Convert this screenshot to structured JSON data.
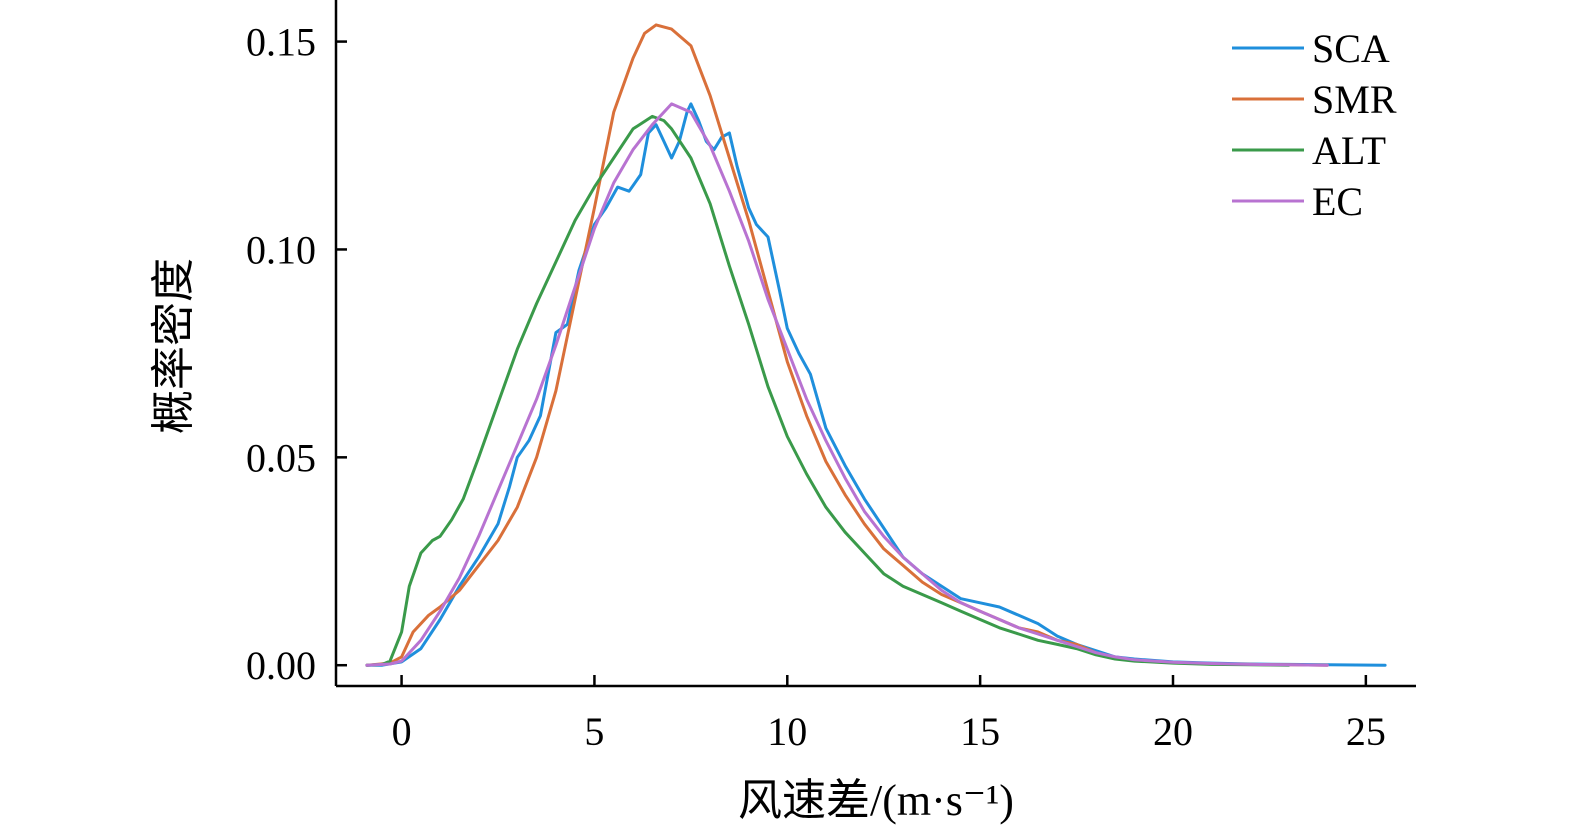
{
  "chart_data": {
    "type": "line",
    "xlabel": "风速差/(m·s⁻¹)",
    "ylabel": "概率密度",
    "xlim": [
      -1.7,
      26.3
    ],
    "ylim": [
      -0.005,
      0.16
    ],
    "xticks": [
      0,
      5,
      10,
      15,
      20,
      25
    ],
    "xtick_labels": [
      "0",
      "5",
      "10",
      "15",
      "20",
      "25"
    ],
    "yticks": [
      0.0,
      0.05,
      0.1,
      0.15
    ],
    "ytick_labels": [
      "0.00",
      "0.05",
      "0.10",
      "0.15"
    ],
    "grid": false,
    "legend_position": "top-right",
    "series": [
      {
        "name": "SCA",
        "color": "#1f8fdc",
        "points": [
          [
            -0.9,
            0.0
          ],
          [
            -0.5,
            0.0
          ],
          [
            0,
            0.0008
          ],
          [
            0.5,
            0.004
          ],
          [
            1,
            0.011
          ],
          [
            1.5,
            0.019
          ],
          [
            2,
            0.026
          ],
          [
            2.5,
            0.034
          ],
          [
            2.8,
            0.043
          ],
          [
            3,
            0.05
          ],
          [
            3.3,
            0.054
          ],
          [
            3.6,
            0.06
          ],
          [
            3.8,
            0.07
          ],
          [
            4,
            0.08
          ],
          [
            4.3,
            0.082
          ],
          [
            4.6,
            0.095
          ],
          [
            5,
            0.106
          ],
          [
            5.3,
            0.11
          ],
          [
            5.6,
            0.115
          ],
          [
            5.9,
            0.114
          ],
          [
            6.2,
            0.118
          ],
          [
            6.4,
            0.128
          ],
          [
            6.6,
            0.13
          ],
          [
            6.8,
            0.126
          ],
          [
            7,
            0.122
          ],
          [
            7.2,
            0.126
          ],
          [
            7.4,
            0.133
          ],
          [
            7.5,
            0.135
          ],
          [
            7.7,
            0.131
          ],
          [
            7.9,
            0.126
          ],
          [
            8.1,
            0.124
          ],
          [
            8.3,
            0.127
          ],
          [
            8.5,
            0.128
          ],
          [
            8.7,
            0.12
          ],
          [
            9,
            0.11
          ],
          [
            9.2,
            0.106
          ],
          [
            9.5,
            0.103
          ],
          [
            9.8,
            0.09
          ],
          [
            10,
            0.081
          ],
          [
            10.3,
            0.075
          ],
          [
            10.6,
            0.07
          ],
          [
            11,
            0.057
          ],
          [
            11.5,
            0.048
          ],
          [
            12,
            0.04
          ],
          [
            12.5,
            0.033
          ],
          [
            13,
            0.026
          ],
          [
            13.5,
            0.022
          ],
          [
            14,
            0.019
          ],
          [
            14.5,
            0.016
          ],
          [
            15,
            0.015
          ],
          [
            15.5,
            0.014
          ],
          [
            16,
            0.012
          ],
          [
            16.5,
            0.01
          ],
          [
            17,
            0.007
          ],
          [
            17.5,
            0.005
          ],
          [
            18,
            0.0035
          ],
          [
            18.5,
            0.002
          ],
          [
            19,
            0.0015
          ],
          [
            20,
            0.0008
          ],
          [
            21,
            0.0005
          ],
          [
            22,
            0.0003
          ],
          [
            23,
            0.0002
          ],
          [
            24,
            0.0001
          ],
          [
            25.5,
            0.0
          ]
        ]
      },
      {
        "name": "SMR",
        "color": "#d9703a",
        "points": [
          [
            -0.9,
            0.0
          ],
          [
            -0.3,
            0.0005
          ],
          [
            0,
            0.002
          ],
          [
            0.3,
            0.008
          ],
          [
            0.7,
            0.012
          ],
          [
            1,
            0.014
          ],
          [
            1.5,
            0.018
          ],
          [
            2,
            0.024
          ],
          [
            2.5,
            0.03
          ],
          [
            3,
            0.038
          ],
          [
            3.5,
            0.05
          ],
          [
            4,
            0.066
          ],
          [
            4.5,
            0.088
          ],
          [
            5,
            0.11
          ],
          [
            5.5,
            0.133
          ],
          [
            6,
            0.146
          ],
          [
            6.3,
            0.152
          ],
          [
            6.6,
            0.154
          ],
          [
            7,
            0.153
          ],
          [
            7.5,
            0.149
          ],
          [
            8,
            0.137
          ],
          [
            8.5,
            0.122
          ],
          [
            9,
            0.107
          ],
          [
            9.5,
            0.09
          ],
          [
            10,
            0.073
          ],
          [
            10.5,
            0.06
          ],
          [
            11,
            0.049
          ],
          [
            11.5,
            0.041
          ],
          [
            12,
            0.034
          ],
          [
            12.5,
            0.028
          ],
          [
            13,
            0.024
          ],
          [
            13.5,
            0.02
          ],
          [
            14,
            0.017
          ],
          [
            14.5,
            0.015
          ],
          [
            15,
            0.013
          ],
          [
            15.5,
            0.011
          ],
          [
            16,
            0.009
          ],
          [
            16.5,
            0.008
          ],
          [
            17,
            0.006
          ],
          [
            17.5,
            0.005
          ],
          [
            18,
            0.003
          ],
          [
            18.5,
            0.0018
          ],
          [
            19,
            0.0012
          ],
          [
            20,
            0.0006
          ],
          [
            21,
            0.0003
          ],
          [
            22,
            0.0002
          ],
          [
            23,
            0.0001
          ],
          [
            24,
            0.0
          ]
        ]
      },
      {
        "name": "ALT",
        "color": "#3a9a4a",
        "points": [
          [
            -0.9,
            0.0
          ],
          [
            -0.5,
            0.0002
          ],
          [
            -0.3,
            0.001
          ],
          [
            0,
            0.008
          ],
          [
            0.2,
            0.019
          ],
          [
            0.5,
            0.027
          ],
          [
            0.8,
            0.03
          ],
          [
            1,
            0.031
          ],
          [
            1.3,
            0.035
          ],
          [
            1.6,
            0.04
          ],
          [
            2,
            0.05
          ],
          [
            2.5,
            0.063
          ],
          [
            3,
            0.076
          ],
          [
            3.5,
            0.087
          ],
          [
            4,
            0.097
          ],
          [
            4.5,
            0.107
          ],
          [
            5,
            0.115
          ],
          [
            5.5,
            0.122
          ],
          [
            6,
            0.129
          ],
          [
            6.5,
            0.132
          ],
          [
            6.8,
            0.131
          ],
          [
            7,
            0.129
          ],
          [
            7.5,
            0.122
          ],
          [
            8,
            0.111
          ],
          [
            8.5,
            0.096
          ],
          [
            9,
            0.082
          ],
          [
            9.5,
            0.067
          ],
          [
            10,
            0.055
          ],
          [
            10.5,
            0.046
          ],
          [
            11,
            0.038
          ],
          [
            11.5,
            0.032
          ],
          [
            12,
            0.027
          ],
          [
            12.5,
            0.022
          ],
          [
            13,
            0.019
          ],
          [
            13.5,
            0.017
          ],
          [
            14,
            0.015
          ],
          [
            14.5,
            0.013
          ],
          [
            15,
            0.011
          ],
          [
            15.5,
            0.009
          ],
          [
            16,
            0.0075
          ],
          [
            16.5,
            0.006
          ],
          [
            17,
            0.005
          ],
          [
            17.5,
            0.004
          ],
          [
            18,
            0.0025
          ],
          [
            18.5,
            0.0015
          ],
          [
            19,
            0.001
          ],
          [
            20,
            0.0005
          ],
          [
            21,
            0.0002
          ],
          [
            22,
            0.0001
          ],
          [
            23,
            0.0
          ]
        ]
      },
      {
        "name": "EC",
        "color": "#b873d1",
        "points": [
          [
            -0.9,
            0.0
          ],
          [
            -0.3,
            0.0003
          ],
          [
            0,
            0.001
          ],
          [
            0.5,
            0.006
          ],
          [
            1,
            0.013
          ],
          [
            1.5,
            0.021
          ],
          [
            2,
            0.031
          ],
          [
            2.5,
            0.042
          ],
          [
            3,
            0.053
          ],
          [
            3.5,
            0.064
          ],
          [
            4,
            0.077
          ],
          [
            4.5,
            0.091
          ],
          [
            5,
            0.105
          ],
          [
            5.5,
            0.116
          ],
          [
            6,
            0.124
          ],
          [
            6.5,
            0.13
          ],
          [
            7,
            0.135
          ],
          [
            7.5,
            0.133
          ],
          [
            8,
            0.125
          ],
          [
            8.5,
            0.114
          ],
          [
            9,
            0.102
          ],
          [
            9.5,
            0.088
          ],
          [
            10,
            0.076
          ],
          [
            10.5,
            0.064
          ],
          [
            11,
            0.054
          ],
          [
            11.5,
            0.045
          ],
          [
            12,
            0.037
          ],
          [
            12.5,
            0.031
          ],
          [
            13,
            0.026
          ],
          [
            13.5,
            0.022
          ],
          [
            14,
            0.018
          ],
          [
            14.5,
            0.015
          ],
          [
            15,
            0.013
          ],
          [
            15.5,
            0.011
          ],
          [
            16,
            0.009
          ],
          [
            16.5,
            0.0075
          ],
          [
            17,
            0.006
          ],
          [
            17.5,
            0.0045
          ],
          [
            18,
            0.003
          ],
          [
            18.5,
            0.002
          ],
          [
            19,
            0.0013
          ],
          [
            20,
            0.0007
          ],
          [
            21,
            0.0004
          ],
          [
            22,
            0.0002
          ],
          [
            23,
            0.0001
          ],
          [
            24,
            0.0
          ]
        ]
      }
    ]
  }
}
